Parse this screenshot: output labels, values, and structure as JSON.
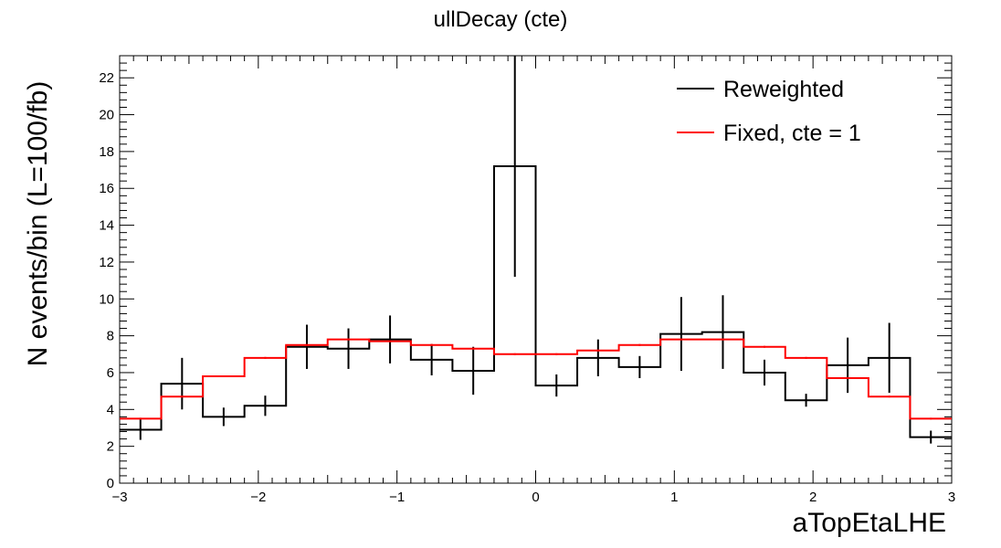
{
  "title": "ullDecay (cte)",
  "chart_data": {
    "type": "histogram",
    "title": "ullDecay (cte)",
    "xlabel": "aTopEtaLHE",
    "ylabel": "N events/bin (L=100/fb)",
    "xlim": [
      -3,
      3
    ],
    "ylim": [
      0,
      23.2
    ],
    "x_ticks": [
      -3,
      -2,
      -1,
      0,
      1,
      2,
      3
    ],
    "x_tick_labels": [
      "−3",
      "−2",
      "−1",
      "0",
      "1",
      "2",
      "3"
    ],
    "y_ticks": [
      0,
      2,
      4,
      6,
      8,
      10,
      12,
      14,
      16,
      18,
      20,
      22
    ],
    "y_tick_labels": [
      "0",
      "2",
      "4",
      "6",
      "8",
      "10",
      "12",
      "14",
      "16",
      "18",
      "20",
      "22"
    ],
    "bin_edges": [
      -3.0,
      -2.7,
      -2.4,
      -2.1,
      -1.8,
      -1.5,
      -1.2,
      -0.9,
      -0.6,
      -0.3,
      0.0,
      0.3,
      0.6,
      0.9,
      1.2,
      1.5,
      1.8,
      2.1,
      2.4,
      2.7,
      3.0
    ],
    "legend_position": "top-right",
    "grid": false,
    "series": [
      {
        "name": "Reweighted",
        "color": "#000000",
        "values": [
          2.9,
          5.4,
          3.6,
          4.2,
          7.4,
          7.3,
          7.8,
          6.7,
          6.1,
          17.2,
          5.3,
          6.8,
          6.3,
          8.1,
          8.2,
          6.0,
          4.5,
          6.4,
          6.8,
          2.5
        ],
        "errors": [
          0.55,
          1.4,
          0.5,
          0.55,
          1.2,
          1.1,
          1.3,
          0.85,
          1.3,
          6.0,
          0.6,
          1.0,
          0.6,
          2.0,
          2.0,
          0.7,
          0.35,
          1.5,
          1.9,
          0.35
        ]
      },
      {
        "name": "Fixed, cte = 1",
        "color": "#ff0000",
        "values": [
          3.5,
          4.7,
          5.8,
          6.8,
          7.5,
          7.8,
          7.7,
          7.5,
          7.3,
          7.0,
          7.0,
          7.2,
          7.5,
          7.8,
          7.8,
          7.4,
          6.8,
          5.7,
          4.7,
          3.5
        ],
        "errors": [
          0.05,
          0.05,
          0.05,
          0.05,
          0.05,
          0.05,
          0.05,
          0.05,
          0.05,
          0.05,
          0.05,
          0.05,
          0.05,
          0.05,
          0.05,
          0.05,
          0.05,
          0.05,
          0.05,
          0.05
        ]
      }
    ]
  }
}
